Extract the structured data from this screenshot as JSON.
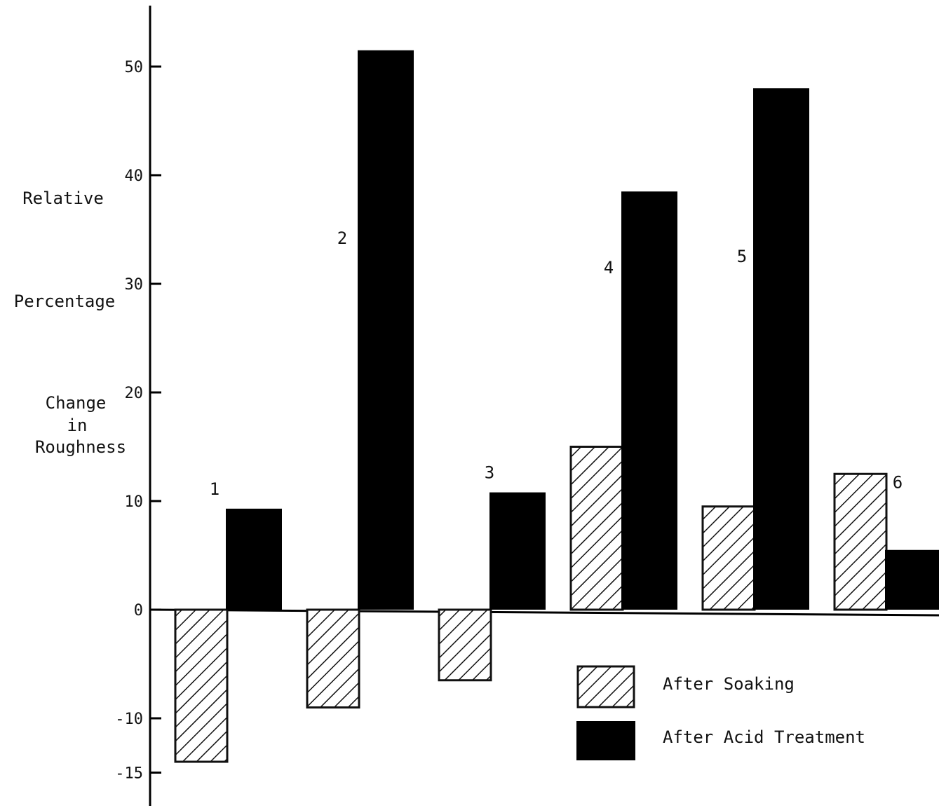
{
  "chart_data": {
    "type": "bar",
    "categories": [
      "1",
      "2",
      "3",
      "4",
      "5",
      "6"
    ],
    "series": [
      {
        "name": "After Soaking",
        "values": [
          -14,
          -9,
          -6.5,
          15,
          9.5,
          12.5
        ]
      },
      {
        "name": "After Acid Treatment",
        "values": [
          9.3,
          51.5,
          10.8,
          38.5,
          48,
          5.5
        ]
      }
    ],
    "ylabel_lines": [
      "Relative",
      "Percentage",
      "Change",
      "in",
      "Roughness"
    ],
    "yticks": [
      50,
      40,
      30,
      20,
      10,
      0,
      -10,
      -15
    ],
    "ylim": [
      -18,
      57
    ],
    "legend_position": "bottom-right",
    "colors": {
      "soaking_hatch": "#111111",
      "acid_fill": "#000000",
      "axis": "#000000"
    }
  }
}
